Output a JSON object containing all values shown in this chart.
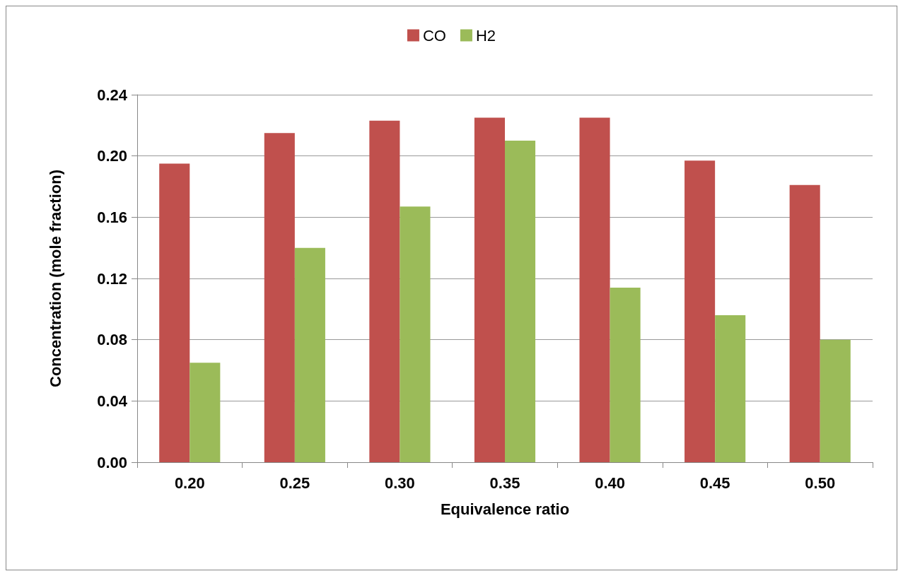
{
  "chart_data": {
    "type": "bar",
    "xlabel": "Equivalence ratio",
    "ylabel": "Concentration (mole fraction)",
    "categories": [
      "0.20",
      "0.25",
      "0.30",
      "0.35",
      "0.40",
      "0.45",
      "0.50"
    ],
    "series": [
      {
        "name": "CO",
        "color": "#c0504d",
        "values": [
          0.195,
          0.215,
          0.223,
          0.225,
          0.225,
          0.197,
          0.181
        ]
      },
      {
        "name": "H2",
        "color": "#9bbb59",
        "values": [
          0.065,
          0.14,
          0.167,
          0.21,
          0.114,
          0.096,
          0.08
        ]
      }
    ],
    "ylim": [
      0,
      0.24
    ],
    "yticks": [
      {
        "value": 0,
        "label": "0.00"
      },
      0.04,
      0.08,
      0.12,
      0.16,
      {
        "value": 0.2,
        "label": "0.20"
      },
      0.24
    ],
    "grid": "y",
    "legend": "top"
  }
}
